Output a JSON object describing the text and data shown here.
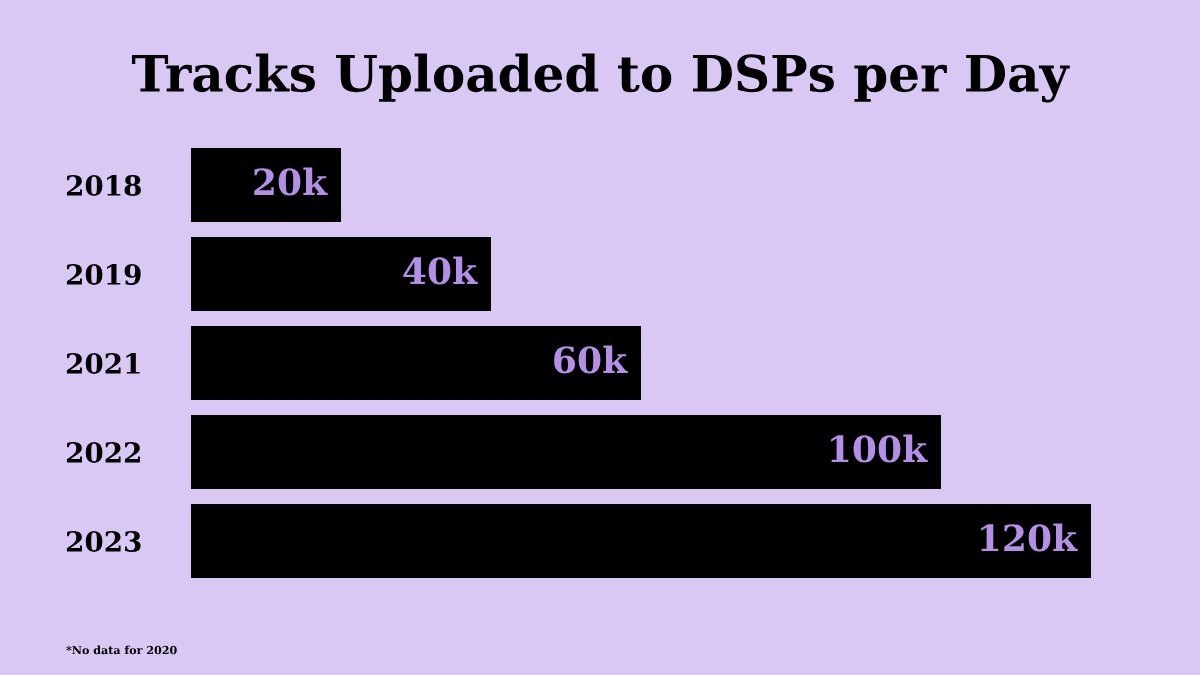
{
  "chart_data": {
    "type": "bar",
    "orientation": "horizontal",
    "title": "Tracks Uploaded to DSPs per Day",
    "categories": [
      "2018",
      "2019",
      "2021",
      "2022",
      "2023"
    ],
    "values": [
      20,
      40,
      60,
      100,
      120
    ],
    "color": "#000000",
    "value_labels": [
      "20k",
      "40k",
      "60k",
      "100k",
      "120k"
    ],
    "annotations": [
      "*No data for 2020"
    ],
    "grid": false,
    "legend": false
  }
}
